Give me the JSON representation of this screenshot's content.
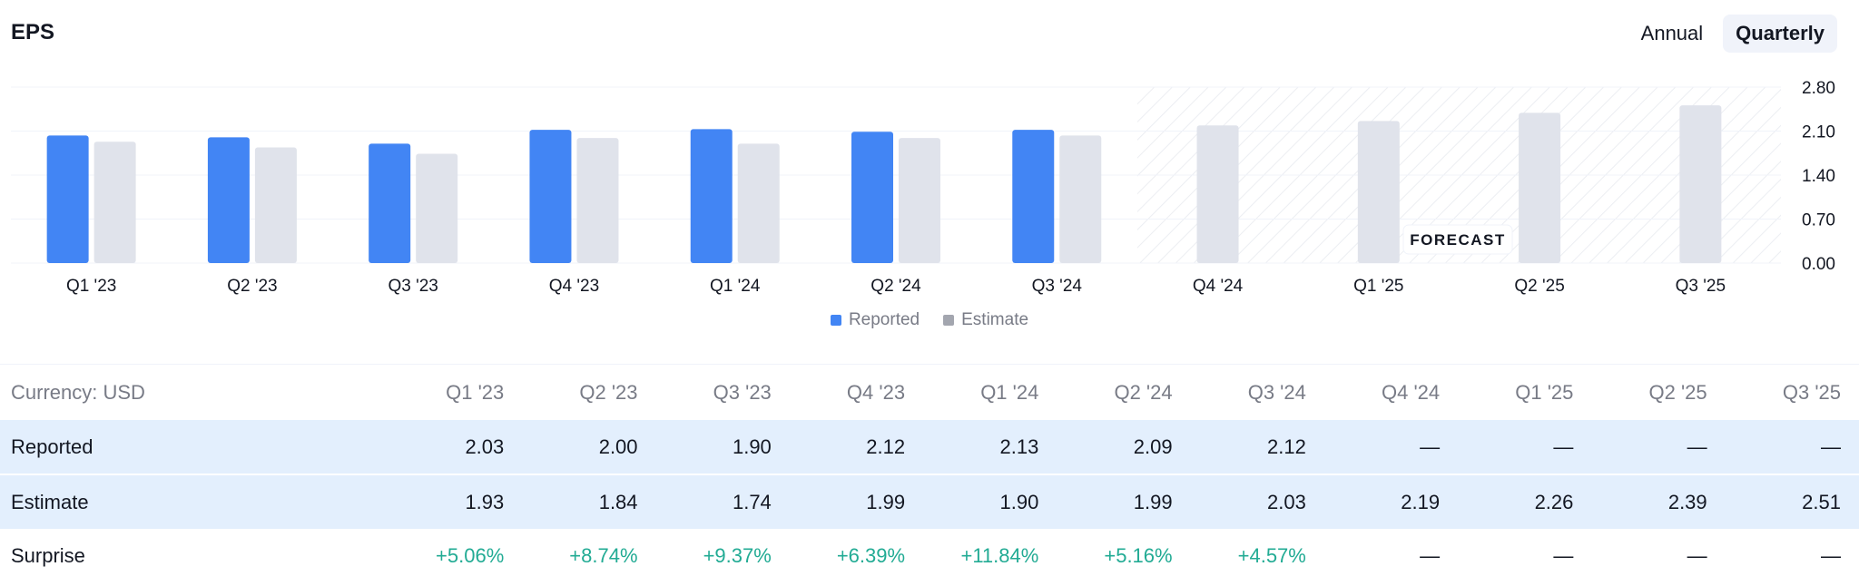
{
  "header": {
    "title": "EPS"
  },
  "period_toggle": {
    "annual_label": "Annual",
    "quarterly_label": "Quarterly",
    "selected": "Quarterly"
  },
  "colors": {
    "reported": "#4285f4",
    "estimate": "#e0e3eb",
    "legend_estimate": "#a3a6af",
    "surprise_positive": "#22ab94",
    "row_highlight": "#e3effd"
  },
  "chart_data": {
    "type": "bar",
    "categories": [
      "Q1 '23",
      "Q2 '23",
      "Q3 '23",
      "Q4 '23",
      "Q1 '24",
      "Q2 '24",
      "Q3 '24",
      "Q4 '24",
      "Q1 '25",
      "Q2 '25",
      "Q3 '25"
    ],
    "series": [
      {
        "name": "Reported",
        "values": [
          2.03,
          2.0,
          1.9,
          2.12,
          2.13,
          2.09,
          2.12,
          null,
          null,
          null,
          null
        ]
      },
      {
        "name": "Estimate",
        "values": [
          1.93,
          1.84,
          1.74,
          1.99,
          1.9,
          1.99,
          2.03,
          2.19,
          2.26,
          2.39,
          2.51
        ]
      }
    ],
    "y_ticks": [
      "2.80",
      "2.10",
      "1.40",
      "0.70",
      "0.00"
    ],
    "ylim": [
      0,
      2.8
    ],
    "forecast_label": "FORECAST",
    "forecast_start_index": 7,
    "grid": true,
    "legend_position": "bottom-center"
  },
  "legend": {
    "reported_label": "Reported",
    "estimate_label": "Estimate"
  },
  "table": {
    "header_label": "Currency: USD",
    "columns": [
      "Q1 '23",
      "Q2 '23",
      "Q3 '23",
      "Q4 '23",
      "Q1 '24",
      "Q2 '24",
      "Q3 '24",
      "Q4 '24",
      "Q1 '25",
      "Q2 '25",
      "Q3 '25"
    ],
    "rows": [
      {
        "label": "Reported",
        "highlight": true,
        "values": [
          "2.03",
          "2.00",
          "1.90",
          "2.12",
          "2.13",
          "2.09",
          "2.12",
          "—",
          "—",
          "—",
          "—"
        ]
      },
      {
        "label": "Estimate",
        "highlight": true,
        "values": [
          "1.93",
          "1.84",
          "1.74",
          "1.99",
          "1.90",
          "1.99",
          "2.03",
          "2.19",
          "2.26",
          "2.39",
          "2.51"
        ]
      },
      {
        "label": "Surprise",
        "highlight": false,
        "values": [
          "+5.06%",
          "+8.74%",
          "+9.37%",
          "+6.39%",
          "+11.84%",
          "+5.16%",
          "+4.57%",
          "—",
          "—",
          "—",
          "—"
        ]
      }
    ]
  }
}
